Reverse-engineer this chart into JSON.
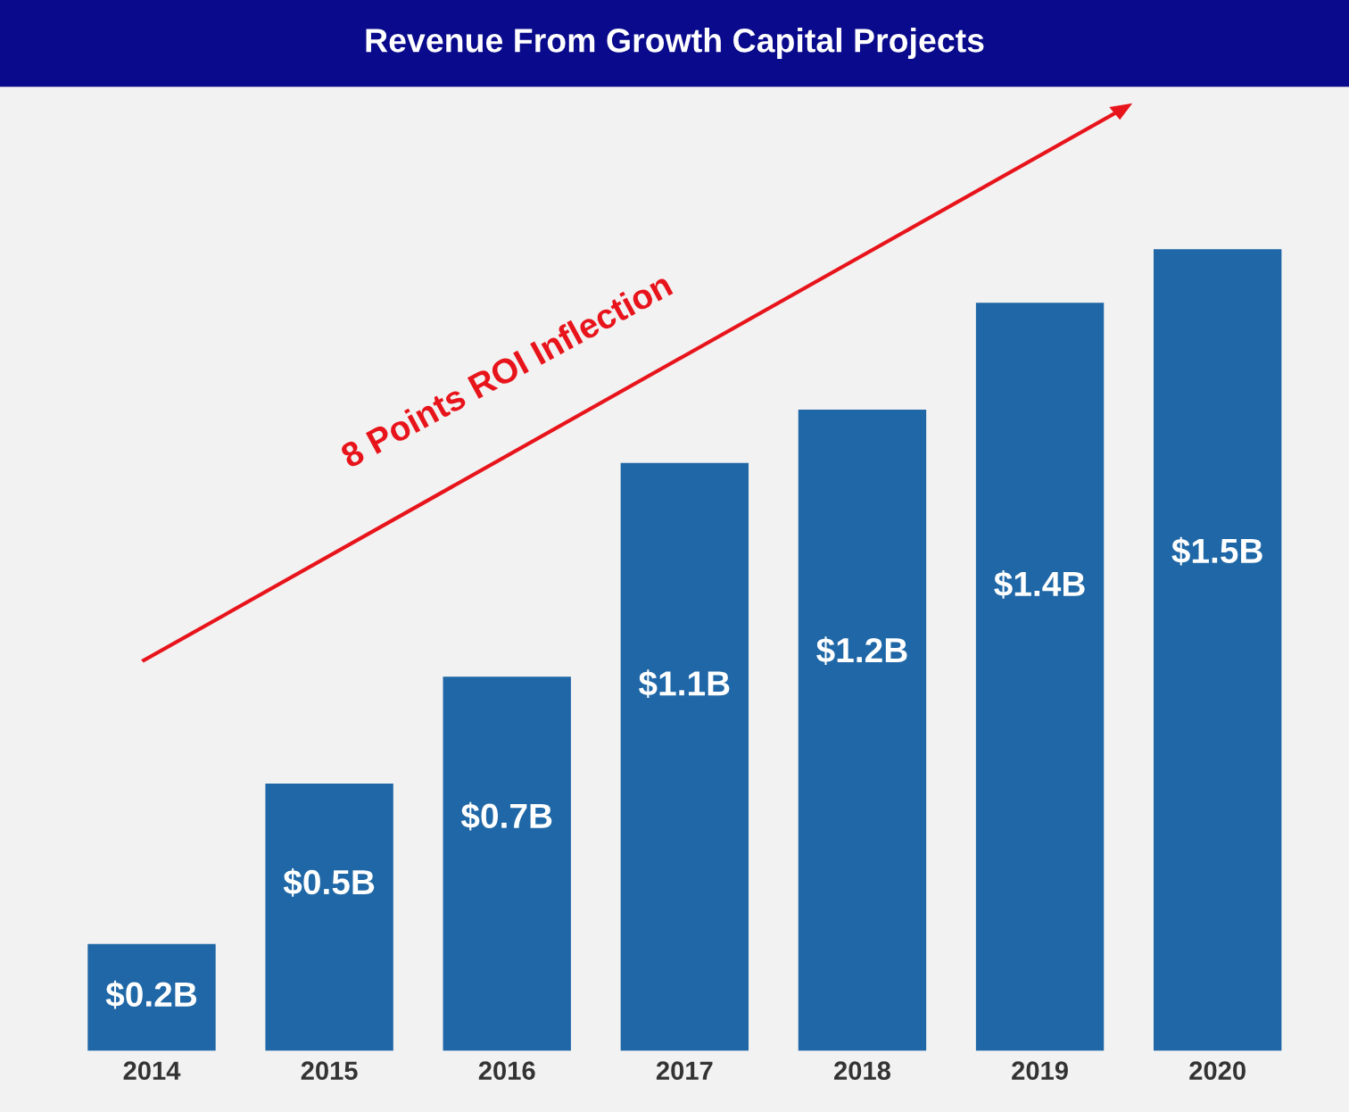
{
  "chart_data": {
    "type": "bar",
    "title": "Revenue From Growth Capital Projects",
    "categories": [
      "2014",
      "2015",
      "2016",
      "2017",
      "2018",
      "2019",
      "2020"
    ],
    "values": [
      0.2,
      0.5,
      0.7,
      1.1,
      1.2,
      1.4,
      1.5
    ],
    "value_labels": [
      "$0.2B",
      "$0.5B",
      "$0.7B",
      "$1.1B",
      "$1.2B",
      "$1.4B",
      "$1.5B"
    ],
    "color": "#1f67a6",
    "annotations": [
      "8 Points ROI Inflection"
    ],
    "grid": false,
    "legend": false
  }
}
